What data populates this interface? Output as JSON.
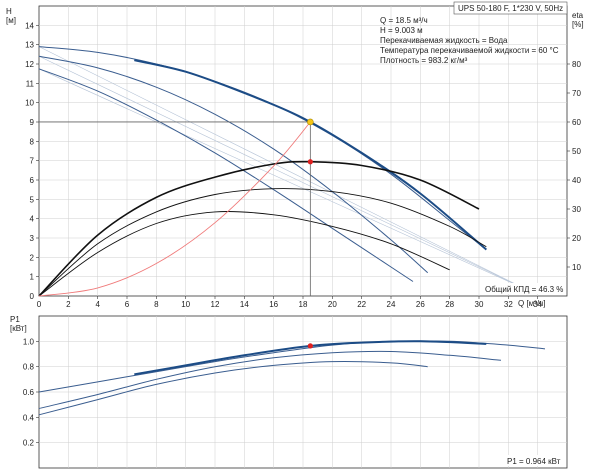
{
  "header": {
    "model": "UPS 50-180 F, 1*230 V, 50Hz",
    "info_lines": [
      "Q = 18.5 м³/ч",
      "H = 9.003 м",
      "Перекачиваемая жидкость = Вода",
      "Температура перекачиваемой жидкости = 60 °C",
      "Плотность = 983.2 кг/м³"
    ]
  },
  "chart_data": [
    {
      "type": "line",
      "name": "head",
      "ylabel_top": "H",
      "ylabel_unit": "[м]",
      "y2label_top": "eta",
      "y2label_unit": "[%]",
      "xlabel": "Q [м³/ч]",
      "xlim": [
        0,
        36
      ],
      "ylim": [
        0,
        15
      ],
      "y2lim": [
        0,
        100
      ],
      "x_ticks": [
        2,
        4,
        6,
        8,
        10,
        12,
        14,
        16,
        18,
        20,
        22,
        24,
        26,
        28,
        30,
        32,
        34
      ],
      "y_ticks": [
        1,
        2,
        3,
        4,
        5,
        6,
        7,
        8,
        9,
        10,
        11,
        12,
        13,
        14
      ],
      "y2_ticks": [
        10,
        20,
        30,
        40,
        50,
        60,
        70,
        80
      ],
      "grid": true,
      "head_curves": [
        {
          "x": [
            0,
            4,
            8,
            12,
            16,
            20,
            24,
            28,
            30.5
          ],
          "y": [
            12.9,
            12.6,
            12.0,
            11.1,
            9.9,
            8.3,
            6.3,
            3.9,
            2.4
          ]
        },
        {
          "x": [
            0,
            4,
            8,
            12,
            16,
            20,
            24,
            26.5
          ],
          "y": [
            12.4,
            11.8,
            10.8,
            9.4,
            7.6,
            5.4,
            2.9,
            1.2
          ]
        },
        {
          "x": [
            0,
            4,
            8,
            12,
            16,
            20,
            24,
            25.5
          ],
          "y": [
            11.75,
            10.6,
            9.1,
            7.4,
            5.5,
            3.5,
            1.5,
            0.75
          ]
        }
      ],
      "head_bold_curve": {
        "x": [
          6.5,
          10,
          14,
          18,
          22,
          26,
          30.5
        ],
        "y": [
          12.2,
          11.6,
          10.5,
          9.2,
          7.4,
          5.3,
          2.4
        ]
      },
      "efficiency_curves": [
        {
          "x": [
            0,
            4,
            8,
            12,
            16,
            18.5,
            22,
            26,
            30
          ],
          "y": [
            0,
            21,
            34,
            41,
            45.5,
            46.3,
            45,
            40,
            30
          ]
        },
        {
          "x": [
            0,
            4,
            8,
            12,
            16,
            20,
            24,
            28,
            30.5
          ],
          "y": [
            0,
            18,
            29,
            35,
            37,
            36,
            32,
            24,
            17
          ]
        },
        {
          "x": [
            0,
            4,
            8,
            12,
            16,
            20,
            24,
            28
          ],
          "y": [
            0,
            15,
            25,
            29,
            28,
            24,
            18,
            9
          ]
        }
      ],
      "system_curve": {
        "x": [
          0,
          4,
          8,
          12,
          16,
          18.5
        ],
        "y": [
          0,
          0.42,
          1.68,
          3.79,
          6.73,
          9.0
        ]
      },
      "fan_lines_end": [
        33.3,
        13.0
      ],
      "operating_point": {
        "x": 18.5,
        "y": 9.003
      },
      "eff_point": {
        "x": 18.5,
        "y": 46.3
      },
      "eff_label": "Общий КПД = 46.3 %"
    },
    {
      "type": "line",
      "name": "power",
      "ylabel_top": "P1",
      "ylabel_unit": "[кВт]",
      "xlim": [
        0,
        36
      ],
      "ylim": [
        0,
        1.2
      ],
      "y_ticks": [
        0.2,
        0.4,
        0.6,
        0.8,
        1.0
      ],
      "grid": true,
      "power_curves": [
        {
          "x": [
            0,
            4,
            8,
            12,
            16,
            20,
            24,
            28,
            32,
            34.5
          ],
          "y": [
            0.6,
            0.68,
            0.76,
            0.84,
            0.91,
            0.97,
            1.0,
            1.0,
            0.97,
            0.94
          ]
        },
        {
          "x": [
            0,
            4,
            8,
            12,
            16,
            20,
            24,
            28,
            31.5
          ],
          "y": [
            0.47,
            0.58,
            0.7,
            0.8,
            0.87,
            0.91,
            0.92,
            0.89,
            0.85
          ]
        },
        {
          "x": [
            0,
            4,
            8,
            12,
            16,
            20,
            24,
            26.5
          ],
          "y": [
            0.42,
            0.54,
            0.66,
            0.75,
            0.81,
            0.84,
            0.83,
            0.8
          ]
        }
      ],
      "power_bold_curve": {
        "x": [
          6.5,
          10,
          14,
          18.5,
          22,
          26,
          30.5
        ],
        "y": [
          0.74,
          0.81,
          0.89,
          0.964,
          0.99,
          1.0,
          0.98
        ]
      },
      "operating_point": {
        "x": 18.5,
        "y": 0.964
      },
      "p1_label": "P1 = 0.964 кВт"
    }
  ]
}
